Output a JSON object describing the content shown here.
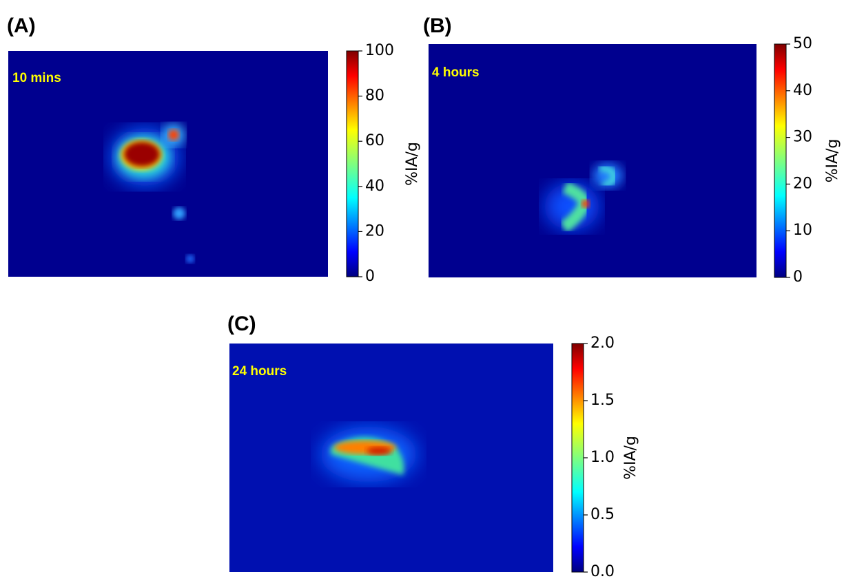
{
  "panels": [
    {
      "label": "(A)",
      "annotation": "10 mins",
      "colorbar": {
        "label": "%IA/g",
        "lim": [
          0,
          100
        ],
        "ticks": [
          0,
          20,
          40,
          60,
          80,
          100
        ]
      }
    },
    {
      "label": "(B)",
      "annotation": "4 hours",
      "colorbar": {
        "label": "%IA/g",
        "lim": [
          0,
          50
        ],
        "ticks": [
          0,
          10,
          20,
          30,
          40,
          50
        ]
      }
    },
    {
      "label": "(C)",
      "annotation": "24 hours",
      "colorbar": {
        "label": "%IA/g",
        "lim": [
          0,
          2
        ],
        "ticks": [
          {
            "value": 0,
            "label": "0.0"
          },
          0.5,
          {
            "value": 1,
            "label": "1.0"
          },
          1.5,
          {
            "value": 2,
            "label": "2.0"
          }
        ]
      }
    }
  ]
}
